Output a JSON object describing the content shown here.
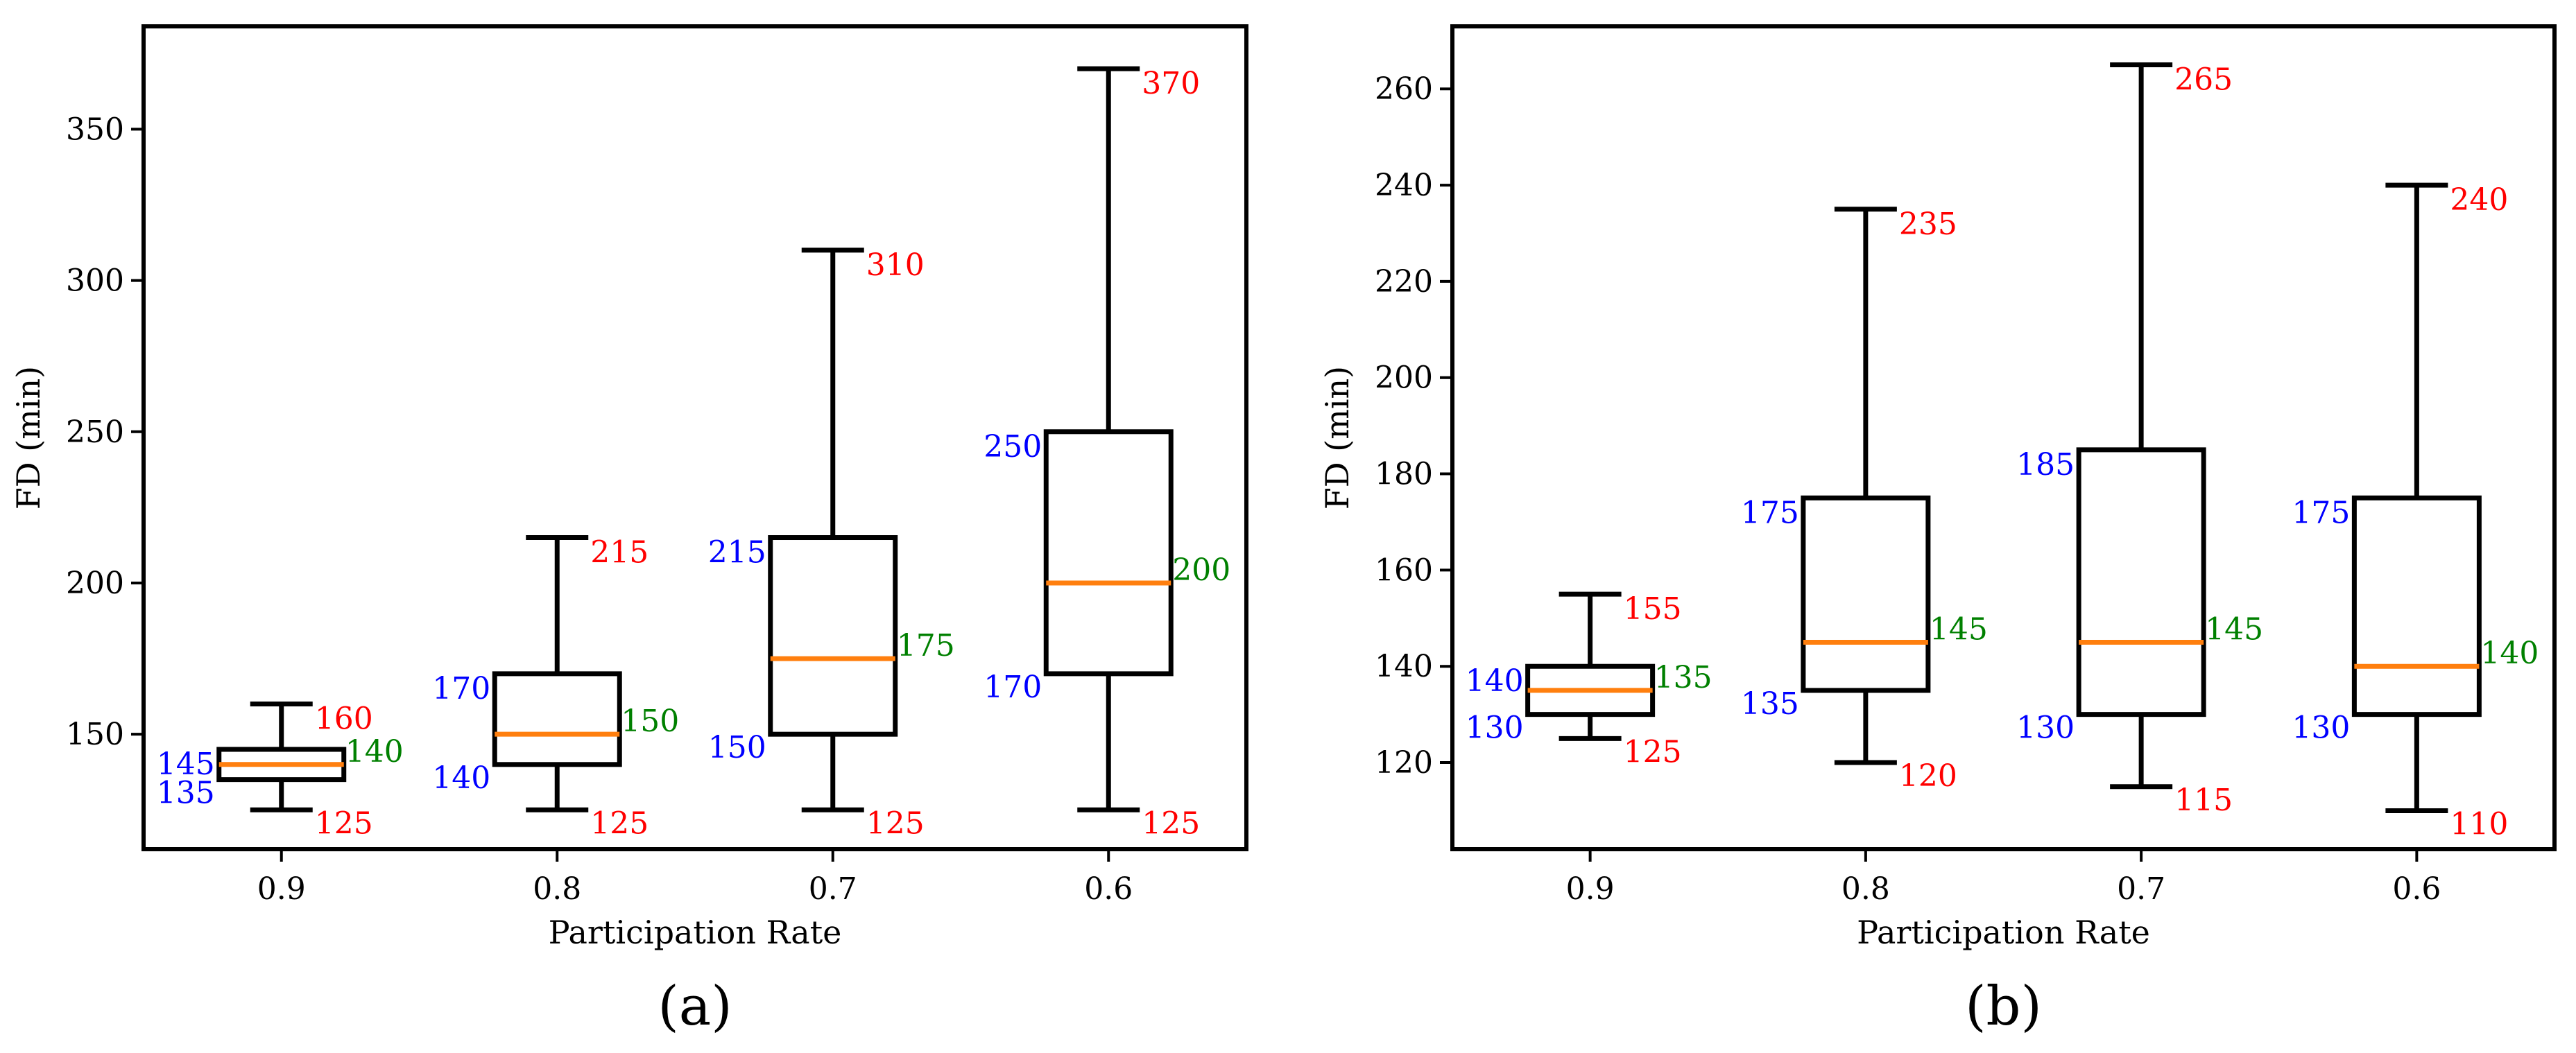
{
  "colors": {
    "box": "#000000",
    "median": "#ff7f0e",
    "max_label": "#ff0000",
    "min_label": "#ff0000",
    "q_label": "#0000ff",
    "median_label": "#008000"
  },
  "chart_data": [
    {
      "type": "box",
      "panel_label": "(a)",
      "xlabel": "Participation Rate",
      "ylabel": "FD (min)",
      "categories": [
        "0.9",
        "0.8",
        "0.7",
        "0.6"
      ],
      "ylim": [
        112,
        384
      ],
      "yticks": [
        150,
        200,
        250,
        300,
        350
      ],
      "boxes": [
        {
          "category": "0.9",
          "min": 125,
          "q1": 135,
          "median": 140,
          "q3": 145,
          "max": 160
        },
        {
          "category": "0.8",
          "min": 125,
          "q1": 140,
          "median": 150,
          "q3": 170,
          "max": 215
        },
        {
          "category": "0.7",
          "min": 125,
          "q1": 150,
          "median": 175,
          "q3": 215,
          "max": 310
        },
        {
          "category": "0.6",
          "min": 125,
          "q1": 170,
          "median": 200,
          "q3": 250,
          "max": 370
        }
      ]
    },
    {
      "type": "box",
      "panel_label": "(b)",
      "xlabel": "Participation Rate",
      "ylabel": "FD (min)",
      "categories": [
        "0.9",
        "0.8",
        "0.7",
        "0.6"
      ],
      "ylim": [
        102,
        273
      ],
      "yticks": [
        120,
        140,
        160,
        180,
        200,
        220,
        240,
        260
      ],
      "boxes": [
        {
          "category": "0.9",
          "min": 125,
          "q1": 130,
          "median": 135,
          "q3": 140,
          "max": 155
        },
        {
          "category": "0.8",
          "min": 120,
          "q1": 135,
          "median": 145,
          "q3": 175,
          "max": 235
        },
        {
          "category": "0.7",
          "min": 115,
          "q1": 130,
          "median": 145,
          "q3": 185,
          "max": 265
        },
        {
          "category": "0.6",
          "min": 110,
          "q1": 130,
          "median": 140,
          "q3": 175,
          "max": 240
        }
      ]
    }
  ]
}
